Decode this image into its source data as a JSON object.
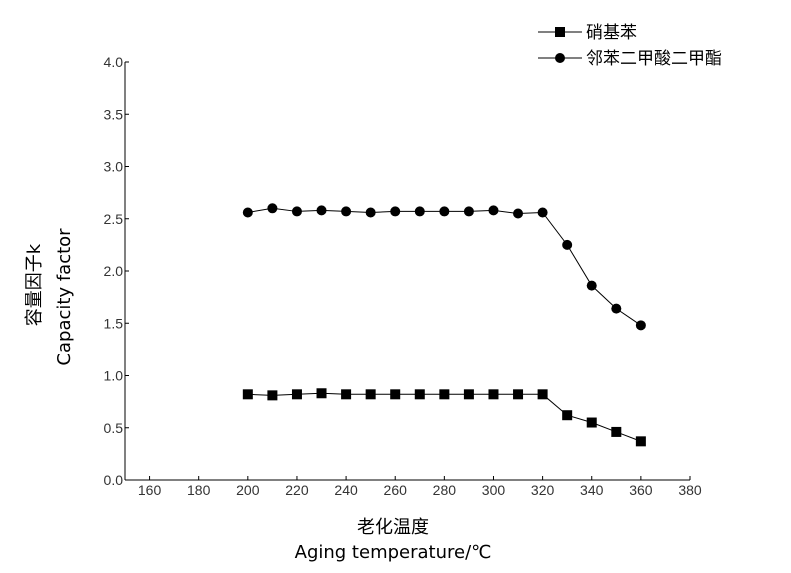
{
  "chart_data": {
    "type": "line",
    "title": "",
    "xlabel_cn": "老化温度",
    "xlabel_en": "Aging temperature/℃",
    "ylabel_cn": "容量因子k",
    "ylabel_en": "Capacity factor",
    "xlim": [
      150,
      380
    ],
    "ylim": [
      0.0,
      4.0
    ],
    "x_ticks": [
      160,
      180,
      200,
      220,
      240,
      260,
      280,
      300,
      320,
      340,
      360,
      380
    ],
    "y_ticks": [
      "0.0",
      "0.5",
      "1.0",
      "1.5",
      "2.0",
      "2.5",
      "3.0",
      "3.5",
      "4.0"
    ],
    "grid": false,
    "legend_position": "top-right",
    "series": [
      {
        "name": "硝基苯",
        "marker": "square",
        "color": "#000000",
        "x": [
          200,
          210,
          220,
          230,
          240,
          250,
          260,
          270,
          280,
          290,
          300,
          310,
          320,
          330,
          340,
          350,
          360
        ],
        "y": [
          0.82,
          0.81,
          0.82,
          0.83,
          0.82,
          0.82,
          0.82,
          0.82,
          0.82,
          0.82,
          0.82,
          0.82,
          0.82,
          0.62,
          0.55,
          0.46,
          0.37
        ]
      },
      {
        "name": "邻苯二甲酸二甲酯",
        "marker": "circle",
        "color": "#000000",
        "x": [
          200,
          210,
          220,
          230,
          240,
          250,
          260,
          270,
          280,
          290,
          300,
          310,
          320,
          330,
          340,
          350,
          360
        ],
        "y": [
          2.56,
          2.6,
          2.57,
          2.58,
          2.57,
          2.56,
          2.57,
          2.57,
          2.57,
          2.57,
          2.58,
          2.55,
          2.56,
          2.25,
          1.86,
          1.64,
          1.48
        ]
      }
    ]
  }
}
